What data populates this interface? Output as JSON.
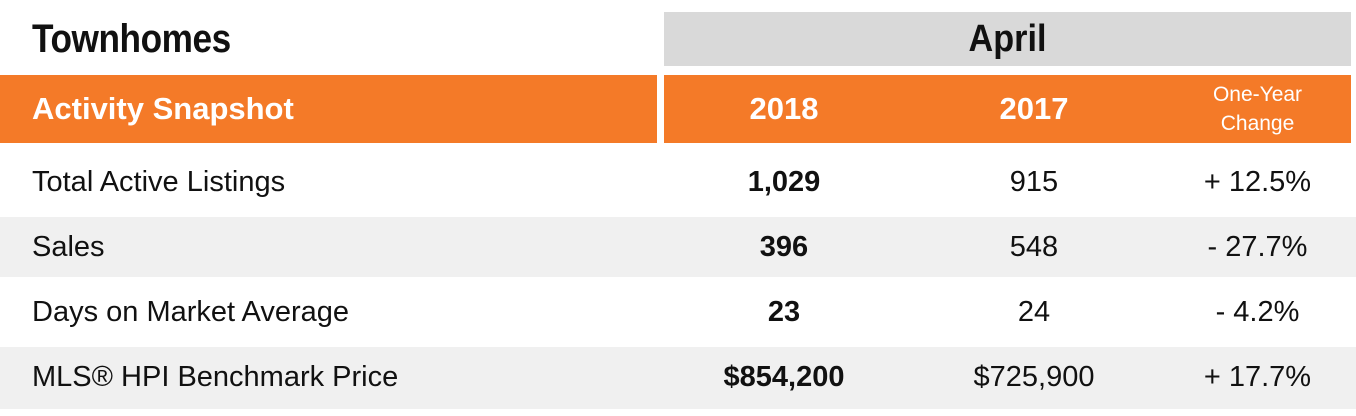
{
  "title": "Townhomes",
  "month": "April",
  "header": {
    "section": "Activity Snapshot",
    "col_2018": "2018",
    "col_2017": "2017",
    "change_line1": "One-Year",
    "change_line2": "Change"
  },
  "rows": [
    {
      "label": "Total Active Listings",
      "v2018": "1,029",
      "v2017": "915",
      "change": "+ 12.5%"
    },
    {
      "label": "Sales",
      "v2018": "396",
      "v2017": "548",
      "change": "- 27.7%"
    },
    {
      "label": "Days on Market Average",
      "v2018": "23",
      "v2017": "24",
      "change": "- 4.2%"
    },
    {
      "label": "MLS® HPI Benchmark Price",
      "v2018": "$854,200",
      "v2017": "$725,900",
      "change": "+ 17.7%"
    }
  ],
  "colors": {
    "accent": "#f47a28",
    "month_band": "#d9d9d9",
    "row_shade": "#f0f0f0"
  }
}
